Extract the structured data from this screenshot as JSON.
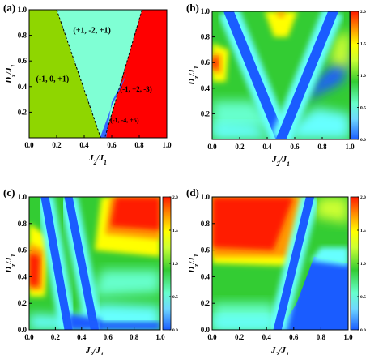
{
  "colors": {
    "red": "#ff1a00",
    "orange": "#ff9900",
    "yellow": "#ffff00",
    "green": "#33cc33",
    "cyan": "#66ffff",
    "blue": "#1a5cff",
    "lime": "#8fd600",
    "aqua": "#7fffd4",
    "phase_red": "#ff0000",
    "phase_blue": "#3366ff"
  },
  "chart_data": [
    {
      "type": "heatmap",
      "panel_label": "(a)",
      "xlabel": "J2/J1",
      "ylabel": "Dz/J1",
      "xlim": [
        0,
        1
      ],
      "ylim": [
        0,
        1
      ],
      "x_ticks": [
        "0.0",
        "0.2",
        "0.4",
        "0.6",
        "0.8",
        "1.0"
      ],
      "y_ticks": [
        "0.2",
        "0.4",
        "0.6",
        "0.8",
        "1.0"
      ],
      "regions": [
        {
          "label": "(-1, 0, +1)",
          "color": "#8fd600"
        },
        {
          "label": "(+1, -2, +1)",
          "color": "#7fffd4"
        },
        {
          "label": "(-1, +2, -3)",
          "color": "#ff0000"
        },
        {
          "label": "(-1, -4, +5)",
          "color": "#3366ff"
        }
      ],
      "boundaries": [
        {
          "from": [
            0.2,
            1.0
          ],
          "to": [
            0.52,
            0.0
          ]
        },
        {
          "from": [
            0.82,
            1.0
          ],
          "to": [
            0.55,
            0.0
          ]
        }
      ]
    },
    {
      "type": "heatmap",
      "panel_label": "(b)",
      "xlabel": "J2/J1",
      "ylabel": "Dz/J1",
      "xlim": [
        0,
        1
      ],
      "ylim": [
        0,
        1
      ],
      "x_ticks": [
        "0.0",
        "0.2",
        "0.4",
        "0.6",
        "0.8",
        "1.0"
      ],
      "y_ticks": [
        "0.2",
        "0.4",
        "0.6",
        "0.8",
        "1.0"
      ],
      "colorbar": {
        "min": 0.0,
        "max": 2.0,
        "tick_labels": [
          "0.0",
          "0.5",
          "1.0",
          "1.5",
          "2.0"
        ]
      },
      "valley_lines": [
        {
          "from": [
            0.12,
            1.0
          ],
          "to": [
            0.5,
            0.0
          ]
        },
        {
          "from": [
            0.88,
            1.0
          ],
          "to": [
            0.5,
            0.0
          ]
        }
      ]
    },
    {
      "type": "heatmap",
      "panel_label": "(c)",
      "xlabel": "J2/J1",
      "ylabel": "Dz/J1",
      "xlim": [
        0,
        1
      ],
      "ylim": [
        0,
        1
      ],
      "x_ticks": [
        "0.0",
        "0.2",
        "0.4",
        "0.6",
        "0.8",
        "1.0"
      ],
      "y_ticks": [
        "0.0",
        "0.2",
        "0.4",
        "0.6",
        "0.8",
        "1.0"
      ],
      "colorbar": {
        "min": 0.0,
        "max": 2.0,
        "tick_labels": [
          "0.0",
          "0.5",
          "1.0",
          "1.5",
          "2.0"
        ]
      },
      "valley_lines": [
        {
          "from": [
            0.12,
            1.0
          ],
          "to": [
            0.3,
            0.0
          ]
        },
        {
          "from": [
            0.3,
            1.0
          ],
          "to": [
            0.5,
            0.0
          ]
        }
      ]
    },
    {
      "type": "heatmap",
      "panel_label": "(d)",
      "xlabel": "J2/J1",
      "ylabel": "Dz/J1",
      "xlim": [
        0,
        1
      ],
      "ylim": [
        0,
        1
      ],
      "x_ticks": [
        "0.0",
        "0.2",
        "0.4",
        "0.6",
        "0.8",
        "1.0"
      ],
      "y_ticks": [
        "0.0",
        "0.2",
        "0.4",
        "0.6",
        "0.8",
        "1.0"
      ],
      "colorbar": {
        "min": 0.0,
        "max": 2.0,
        "tick_labels": [
          "0.0",
          "0.5",
          "1.0",
          "1.5",
          "2.0"
        ]
      },
      "valley_lines": [
        {
          "from": [
            0.48,
            0.0
          ],
          "to": [
            0.72,
            1.0
          ]
        }
      ]
    }
  ]
}
